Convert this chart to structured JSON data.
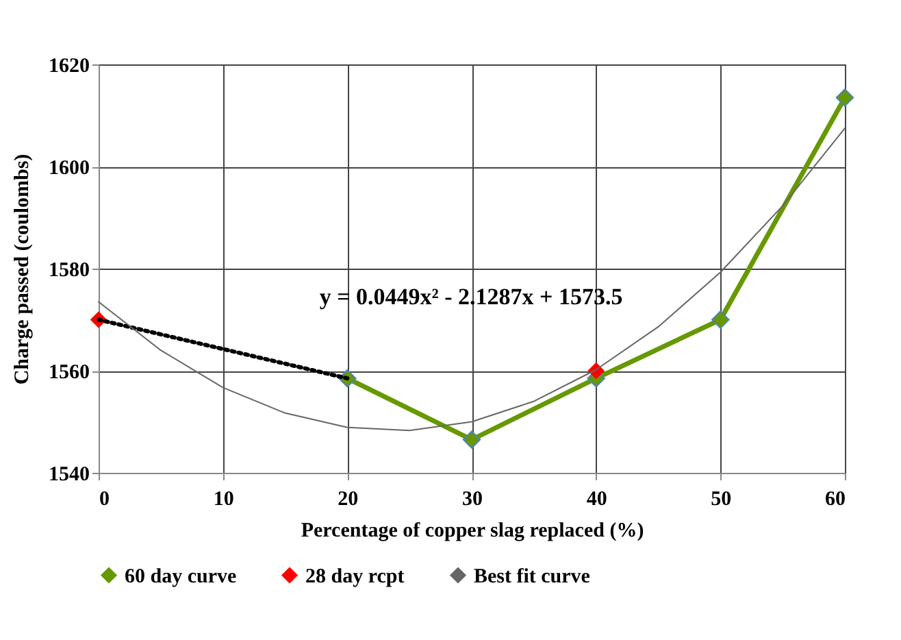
{
  "chart_data": {
    "type": "line",
    "xlabel": "Percentage  of  copper slag  replaced  (%)",
    "ylabel": "Charge  passed  (coulombs)",
    "xlim": [
      0,
      60
    ],
    "xticks": [
      0,
      10,
      20,
      30,
      40,
      50,
      60
    ],
    "ylim": [
      1540,
      1620
    ],
    "yticks": [
      1540,
      1560,
      1580,
      1600,
      1620
    ],
    "grid": true,
    "legend": "bottom",
    "marker": "diamond",
    "annotations": [
      "y = 0.0449x² - 2.1287x + 1573.5"
    ],
    "series": [
      {
        "name": "60 day curve",
        "color": "#669900",
        "x": [
          20,
          30,
          40,
          50,
          60
        ],
        "values": [
          1558.5,
          1546.5,
          1558.5,
          1570,
          1613.5
        ]
      },
      {
        "name": "28 day rcpt",
        "type": "scatter",
        "color": "#ff0000",
        "x": [
          0,
          40
        ],
        "values": [
          1570,
          1560
        ]
      },
      {
        "type": "line",
        "color": "#000000",
        "line_style": "dotted",
        "marker": "none",
        "x": [
          0,
          20
        ],
        "values": [
          1570,
          1558.5
        ]
      },
      {
        "name": "Best fit curve",
        "color": "#666666",
        "marker": "none",
        "x": [
          0,
          5,
          10,
          15,
          20,
          25,
          30,
          35,
          40,
          45,
          50,
          55,
          60
        ],
        "values": [
          1573.5,
          1564,
          1556.7,
          1551.7,
          1548.9,
          1548.3,
          1550,
          1554,
          1560.2,
          1568.6,
          1579.3,
          1592.3,
          1607.5
        ]
      }
    ]
  }
}
